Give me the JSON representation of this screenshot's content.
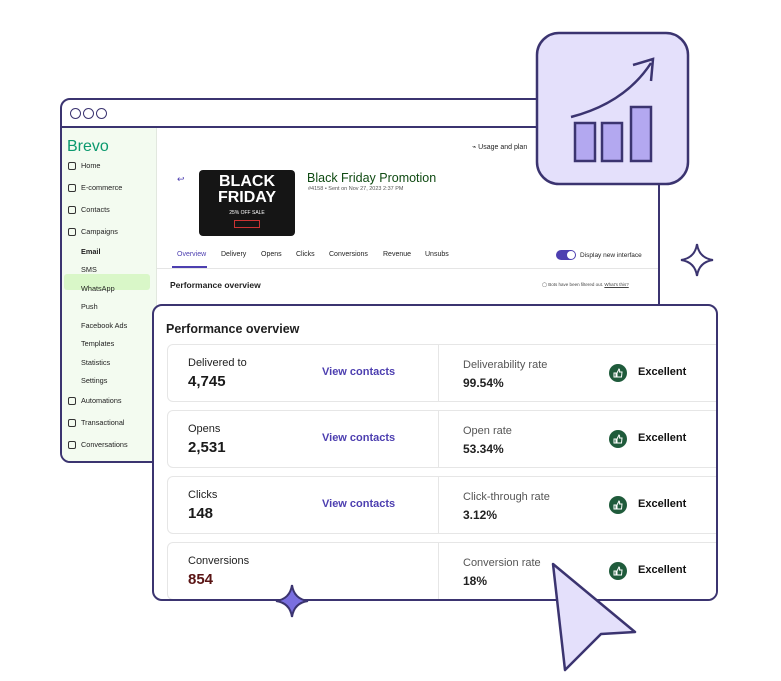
{
  "browser": {
    "logo": "Brevo",
    "nav": [
      "Home",
      "E-commerce",
      "Contacts",
      "Campaigns",
      "Email",
      "SMS",
      "WhatsApp",
      "Push",
      "Facebook Ads",
      "Templates",
      "Statistics",
      "Settings",
      "Automations",
      "Transactional",
      "Conversations"
    ],
    "usage": "Usage and plan",
    "banner": {
      "line1": "BLACK",
      "line2": "FRIDAY",
      "line3": "25% OFF SALE"
    },
    "title": "Black Friday Promotion",
    "meta": "#4158 • Sent on Nov 27, 2023 2:37 PM",
    "tabs": [
      "Overview",
      "Delivery",
      "Opens",
      "Clicks",
      "Conversions",
      "Revenue",
      "Unsubs"
    ],
    "toggle": "Display new interface",
    "section": "Performance overview",
    "bots_note": "Bots have been filtered out.",
    "whats_this": "What's this?"
  },
  "card": {
    "title": "Performance overview",
    "rows": [
      {
        "label": "Delivered to",
        "value": "4,745",
        "action": "View contacts",
        "metric": "Deliverability rate",
        "rate": "99.54%",
        "status": "Excellent"
      },
      {
        "label": "Opens",
        "value": "2,531",
        "action": "View contacts",
        "metric": "Open rate",
        "rate": "53.34%",
        "status": "Excellent"
      },
      {
        "label": "Clicks",
        "value": "148",
        "action": "View contacts",
        "metric": "Click-through rate",
        "rate": "3.12%",
        "status": "Excellent"
      },
      {
        "label": "Conversions",
        "value": "854",
        "metric": "Conversion rate",
        "rate": "18%",
        "status": "Excellent"
      }
    ]
  }
}
